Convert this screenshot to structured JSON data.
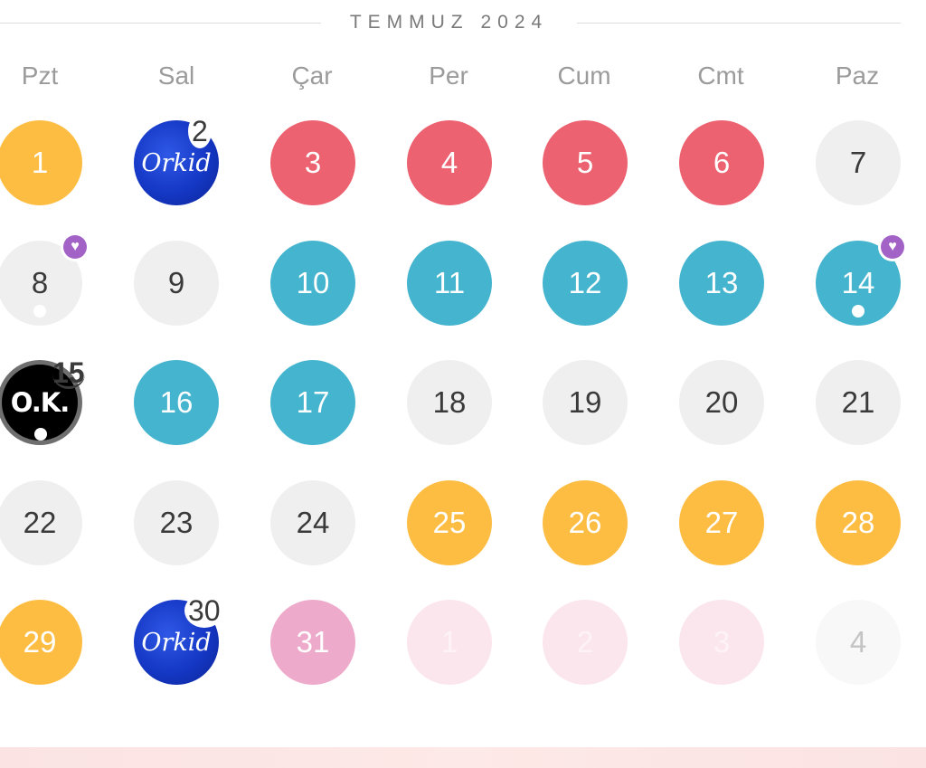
{
  "header": {
    "title": "TEMMUZ 2024"
  },
  "weekdays": [
    "Pzt",
    "Sal",
    "Çar",
    "Per",
    "Cum",
    "Cmt",
    "Paz"
  ],
  "brands": {
    "orkid": "Orkid",
    "ok": "O.K."
  },
  "days": {
    "d1": "1",
    "d2": "2",
    "d3": "3",
    "d4": "4",
    "d5": "5",
    "d6": "6",
    "d7": "7",
    "d8": "8",
    "d9": "9",
    "d10": "10",
    "d11": "11",
    "d12": "12",
    "d13": "13",
    "d14": "14",
    "d15": "15",
    "d16": "16",
    "d17": "17",
    "d18": "18",
    "d19": "19",
    "d20": "20",
    "d21": "21",
    "d22": "22",
    "d23": "23",
    "d24": "24",
    "d25": "25",
    "d26": "26",
    "d27": "27",
    "d28": "28",
    "d29": "29",
    "d30": "30",
    "d31": "31",
    "n1": "1",
    "n2": "2",
    "n3": "3",
    "n4": "4"
  },
  "icons": {
    "heart": "heart-icon",
    "dot": "dot-indicator"
  },
  "colors": {
    "yellow": "#fdbd43",
    "red": "#ec6270",
    "teal": "#45b4ce",
    "gray": "#efefef",
    "pink": "#eeaacb",
    "lightpink": "#fbe6ee",
    "purple": "#a262c6",
    "blue": "#1437c4"
  }
}
